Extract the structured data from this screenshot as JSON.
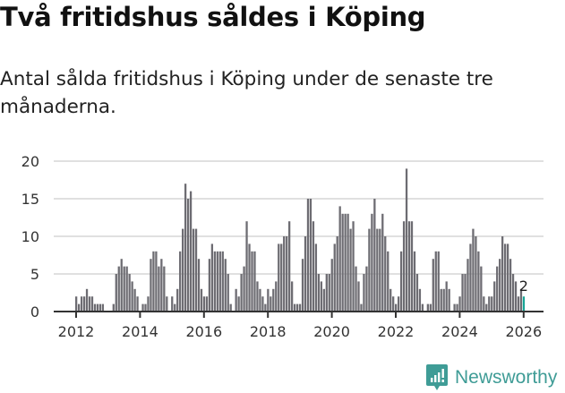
{
  "header": {
    "title": "Två fritidshus såldes i Köping",
    "subtitle": "Antal sålda fritidshus i Köping under de senaste tre månaderna."
  },
  "footer": {
    "brand": "Newsworthy",
    "brand_icon": "bar-chart-speech-bubble-icon"
  },
  "colors": {
    "bar": "#6d6c72",
    "highlight": "#18a596",
    "grid": "#e0e0e0",
    "axis": "#333333",
    "brand": "#3f9c96"
  },
  "chart_data": {
    "type": "bar",
    "title": "Två fritidshus såldes i Köping",
    "subtitle": "Antal sålda fritidshus i Köping under de senaste tre månaderna.",
    "xlabel": "",
    "ylabel": "",
    "ylim": [
      0,
      20
    ],
    "yticks": [
      0,
      5,
      10,
      15,
      20
    ],
    "xticks": [
      "2012",
      "2014",
      "2016",
      "2018",
      "2020",
      "2022",
      "2024",
      "2026"
    ],
    "grid": true,
    "legend": null,
    "x_start": "2012-01",
    "x_interval": "month",
    "annotation": {
      "label": "2",
      "index": 168
    },
    "highlight_last": true,
    "values": [
      2,
      1,
      2,
      2,
      3,
      2,
      2,
      1,
      1,
      1,
      1,
      0,
      0,
      0,
      1,
      5,
      6,
      7,
      6,
      6,
      5,
      4,
      3,
      2,
      0,
      1,
      1,
      2,
      7,
      8,
      8,
      6,
      7,
      6,
      2,
      0,
      2,
      1,
      3,
      8,
      11,
      17,
      15,
      16,
      11,
      11,
      7,
      3,
      2,
      2,
      7,
      9,
      8,
      8,
      8,
      8,
      7,
      5,
      1,
      0,
      3,
      2,
      5,
      6,
      12,
      9,
      8,
      8,
      4,
      3,
      2,
      1,
      3,
      2,
      3,
      4,
      9,
      9,
      10,
      10,
      12,
      4,
      1,
      1,
      1,
      7,
      10,
      15,
      15,
      12,
      9,
      5,
      4,
      3,
      5,
      5,
      7,
      9,
      10,
      14,
      13,
      13,
      13,
      11,
      12,
      6,
      4,
      1,
      5,
      6,
      11,
      13,
      15,
      11,
      11,
      13,
      10,
      8,
      3,
      2,
      1,
      2,
      8,
      12,
      19,
      12,
      12,
      8,
      5,
      3,
      1,
      0,
      1,
      1,
      7,
      8,
      8,
      3,
      3,
      4,
      3,
      0,
      1,
      1,
      2,
      5,
      5,
      7,
      9,
      11,
      10,
      8,
      6,
      2,
      1,
      2,
      2,
      4,
      6,
      7,
      10,
      9,
      9,
      7,
      5,
      4,
      2,
      3,
      2
    ]
  }
}
